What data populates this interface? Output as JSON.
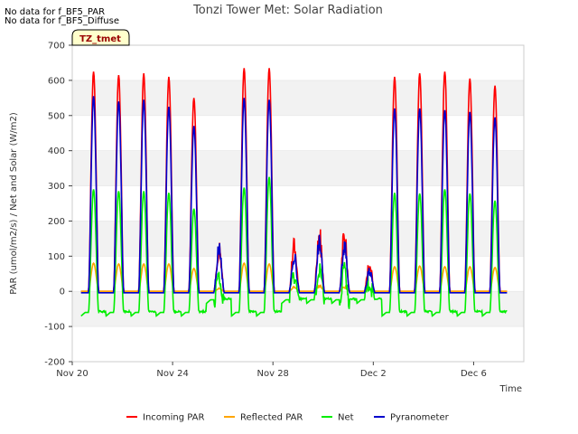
{
  "notes": [
    "No data for f_BF5_PAR",
    "No data for f_BF5_Diffuse"
  ],
  "chart_data": {
    "type": "line",
    "title": "Tonzi Tower Met: Solar Radiation",
    "xlabel": "Time",
    "ylabel": "PAR (umol/m2/s) / Net and Solar (W/m2)",
    "badge": "TZ_tmet",
    "x_range": [
      "Nov 20",
      "Dec 8"
    ],
    "ylim": [
      -200,
      700
    ],
    "yticks": [
      -200,
      -100,
      0,
      100,
      200,
      300,
      400,
      500,
      600,
      700
    ],
    "xticks": [
      {
        "label": "Nov 20",
        "day": 0
      },
      {
        "label": "Nov 24",
        "day": 4
      },
      {
        "label": "Nov 28",
        "day": 8
      },
      {
        "label": "Dec 2",
        "day": 12
      },
      {
        "label": "Dec 6",
        "day": 16
      }
    ],
    "grid": "horizontal bands",
    "legend": "bottom",
    "series": [
      {
        "name": "Incoming PAR",
        "color": "#ff0000",
        "daily_peak": [
          625,
          615,
          620,
          610,
          550,
          150,
          635,
          635,
          160,
          205,
          195,
          100,
          610,
          620,
          625,
          605,
          585
        ]
      },
      {
        "name": "Reflected PAR",
        "color": "#ffa500",
        "daily_peak": [
          80,
          78,
          78,
          78,
          65,
          10,
          80,
          78,
          15,
          20,
          15,
          8,
          70,
          72,
          70,
          70,
          68
        ]
      },
      {
        "name": "Net",
        "color": "#00ee00",
        "night_value": -60,
        "daily_peak": [
          290,
          285,
          285,
          280,
          235,
          40,
          295,
          325,
          50,
          55,
          60,
          25,
          280,
          278,
          290,
          278,
          258
        ]
      },
      {
        "name": "Pyranometer",
        "color": "#0000cc",
        "daily_peak": [
          555,
          540,
          545,
          525,
          470,
          145,
          550,
          545,
          120,
          165,
          155,
          70,
          520,
          520,
          515,
          510,
          495
        ]
      }
    ]
  }
}
